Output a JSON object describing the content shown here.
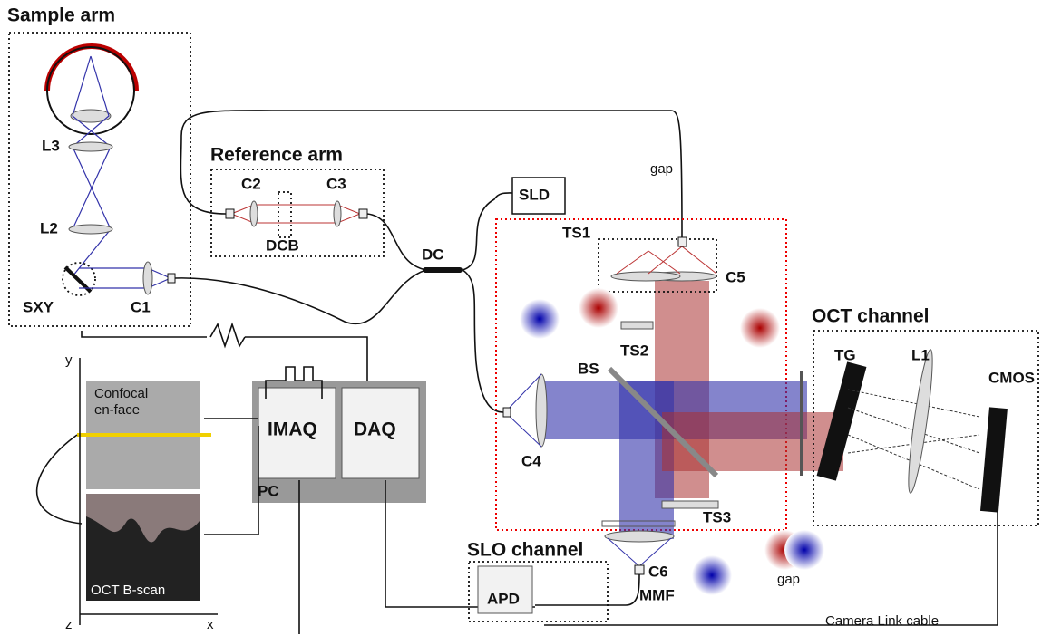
{
  "sample_arm": {
    "title": "Sample arm",
    "labels": [
      "L3",
      "L2",
      "SXY",
      "C1"
    ]
  },
  "reference_arm": {
    "title": "Reference arm",
    "labels": [
      "C2",
      "C3",
      "DCB"
    ]
  },
  "source": "SLD",
  "coupler": "DC",
  "interferometer": {
    "labels": [
      "gap",
      "TS1",
      "C5",
      "TS2",
      "BS",
      "C4",
      "TS3"
    ]
  },
  "oct_channel": {
    "title": "OCT channel",
    "labels": [
      "TG",
      "L1",
      "CMOS"
    ]
  },
  "pc": {
    "title": "PC",
    "labels": [
      "IMAQ",
      "DAQ"
    ]
  },
  "images": {
    "confocal": [
      "Confocal",
      "en-face"
    ],
    "bscan": "OCT B-scan",
    "axes": [
      "y",
      "z",
      "x"
    ]
  },
  "slo_channel": {
    "title": "SLO channel",
    "labels": [
      "APD",
      "C6",
      "MMF"
    ]
  },
  "bottom": {
    "gap": "gap",
    "cable": "Camera Link cable"
  }
}
